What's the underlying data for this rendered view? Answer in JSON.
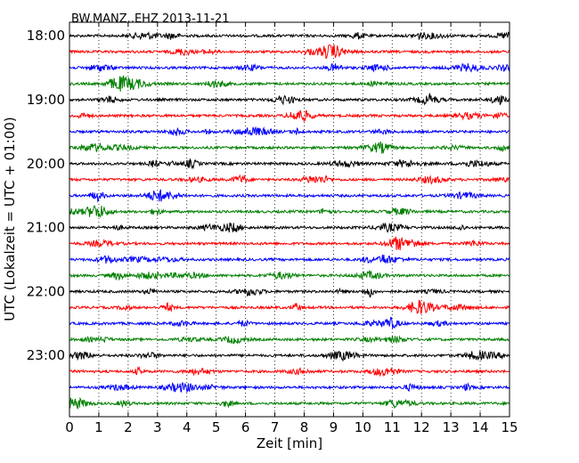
{
  "chart_data": {
    "type": "line",
    "title": "BW.MANZ..EHZ 2013-11-21",
    "xlabel": "Zeit  [min]",
    "ylabel": "UTC (Lokalzeit = UTC + 01:00)",
    "xlim": [
      0,
      15
    ],
    "x_ticks": [
      "0",
      "1",
      "2",
      "3",
      "4",
      "5",
      "6",
      "7",
      "8",
      "9",
      "10",
      "11",
      "12",
      "13",
      "14",
      "15"
    ],
    "y_ticks": [
      "18:00",
      "19:00",
      "20:00",
      "21:00",
      "22:00",
      "23:00"
    ],
    "vertical_gridlines": "dotted, every 1 min",
    "line_minutes": 15,
    "colors": [
      "#000000",
      "#ff0000",
      "#0000ff",
      "#007f00"
    ],
    "series": [
      {
        "start": "18:00",
        "color": "#000000"
      },
      {
        "start": "18:15",
        "color": "#ff0000"
      },
      {
        "start": "18:30",
        "color": "#0000ff"
      },
      {
        "start": "18:45",
        "color": "#007f00"
      },
      {
        "start": "19:00",
        "color": "#000000"
      },
      {
        "start": "19:15",
        "color": "#ff0000"
      },
      {
        "start": "19:30",
        "color": "#0000ff"
      },
      {
        "start": "19:45",
        "color": "#007f00"
      },
      {
        "start": "20:00",
        "color": "#000000"
      },
      {
        "start": "20:15",
        "color": "#ff0000"
      },
      {
        "start": "20:30",
        "color": "#0000ff"
      },
      {
        "start": "20:45",
        "color": "#007f00"
      },
      {
        "start": "21:00",
        "color": "#000000"
      },
      {
        "start": "21:15",
        "color": "#ff0000"
      },
      {
        "start": "21:30",
        "color": "#0000ff"
      },
      {
        "start": "21:45",
        "color": "#007f00"
      },
      {
        "start": "22:00",
        "color": "#000000"
      },
      {
        "start": "22:15",
        "color": "#ff0000"
      },
      {
        "start": "22:30",
        "color": "#0000ff"
      },
      {
        "start": "22:45",
        "color": "#007f00"
      },
      {
        "start": "23:00",
        "color": "#000000"
      },
      {
        "start": "23:15",
        "color": "#ff0000"
      },
      {
        "start": "23:30",
        "color": "#0000ff"
      },
      {
        "start": "23:45",
        "color": "#007f00"
      }
    ]
  }
}
